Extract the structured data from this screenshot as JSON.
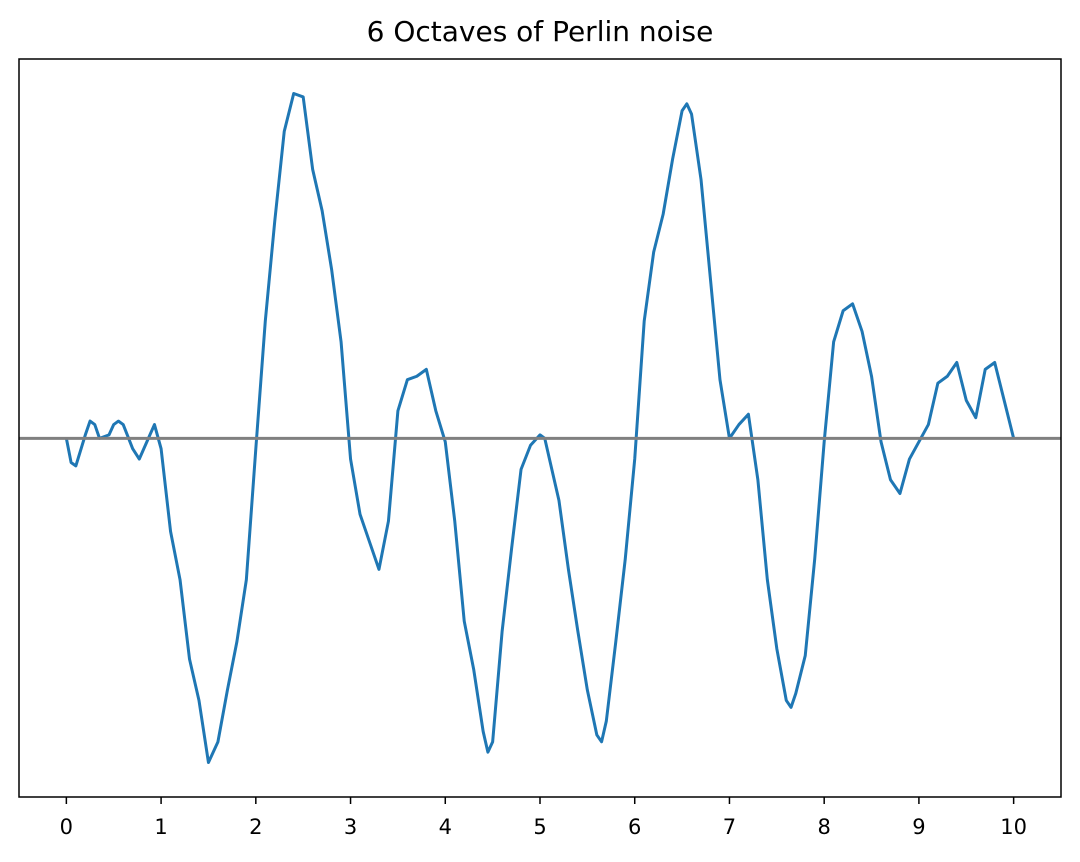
{
  "chart_data": {
    "type": "line",
    "title": "6 Octaves of Perlin noise",
    "x": [
      0,
      0.05,
      0.1,
      0.2,
      0.25,
      0.3,
      0.35,
      0.45,
      0.5,
      0.55,
      0.6,
      0.7,
      0.77,
      0.85,
      0.93,
      1.0,
      1.1,
      1.2,
      1.3,
      1.4,
      1.5,
      1.6,
      1.7,
      1.8,
      1.9,
      2.0,
      2.1,
      2.2,
      2.3,
      2.4,
      2.5,
      2.6,
      2.7,
      2.8,
      2.9,
      3.0,
      3.1,
      3.2,
      3.3,
      3.4,
      3.5,
      3.6,
      3.7,
      3.8,
      3.9,
      4.0,
      4.1,
      4.2,
      4.3,
      4.4,
      4.45,
      4.5,
      4.6,
      4.7,
      4.8,
      4.9,
      5.0,
      5.05,
      5.1,
      5.2,
      5.3,
      5.4,
      5.5,
      5.6,
      5.65,
      5.7,
      5.8,
      5.9,
      6.0,
      6.1,
      6.2,
      6.3,
      6.4,
      6.5,
      6.55,
      6.6,
      6.7,
      6.8,
      6.9,
      7.0,
      7.1,
      7.2,
      7.3,
      7.4,
      7.5,
      7.6,
      7.65,
      7.7,
      7.8,
      7.9,
      8.0,
      8.1,
      8.2,
      8.3,
      8.4,
      8.5,
      8.6,
      8.7,
      8.8,
      8.9,
      9.0,
      9.1,
      9.2,
      9.3,
      9.4,
      9.5,
      9.6,
      9.7,
      9.8,
      9.9,
      10.0
    ],
    "values": [
      0,
      -0.07,
      -0.08,
      0.01,
      0.05,
      0.04,
      0.0,
      0.01,
      0.04,
      0.05,
      0.04,
      -0.03,
      -0.06,
      -0.01,
      0.04,
      -0.03,
      -0.27,
      -0.41,
      -0.64,
      -0.76,
      -0.94,
      -0.88,
      -0.73,
      -0.59,
      -0.41,
      -0.03,
      0.34,
      0.63,
      0.89,
      1.0,
      0.99,
      0.78,
      0.66,
      0.49,
      0.28,
      -0.06,
      -0.22,
      -0.3,
      -0.38,
      -0.24,
      0.08,
      0.17,
      0.18,
      0.2,
      0.08,
      -0.01,
      -0.24,
      -0.53,
      -0.67,
      -0.85,
      -0.91,
      -0.88,
      -0.56,
      -0.32,
      -0.09,
      -0.02,
      0.01,
      0,
      -0.06,
      -0.18,
      -0.38,
      -0.56,
      -0.73,
      -0.86,
      -0.88,
      -0.82,
      -0.59,
      -0.35,
      -0.06,
      0.34,
      0.54,
      0.65,
      0.81,
      0.95,
      0.97,
      0.94,
      0.75,
      0.46,
      0.17,
      0,
      0.04,
      0.07,
      -0.12,
      -0.41,
      -0.61,
      -0.76,
      -0.78,
      -0.74,
      -0.63,
      -0.35,
      -0.01,
      0.28,
      0.37,
      0.39,
      0.31,
      0.18,
      -0.01,
      -0.12,
      -0.16,
      -0.06,
      -0.01,
      0.04,
      0.16,
      0.18,
      0.22,
      0.11,
      0.06,
      0.2,
      0.22,
      0.11,
      0
    ],
    "color": "#1f77b4",
    "hline": {
      "value": 0,
      "color": "#808080"
    },
    "xlim": [
      -0.5,
      10.5
    ],
    "ylim": [
      -1.04,
      1.1
    ],
    "xticks": [
      0,
      1,
      2,
      3,
      4,
      5,
      6,
      7,
      8,
      9,
      10
    ]
  }
}
